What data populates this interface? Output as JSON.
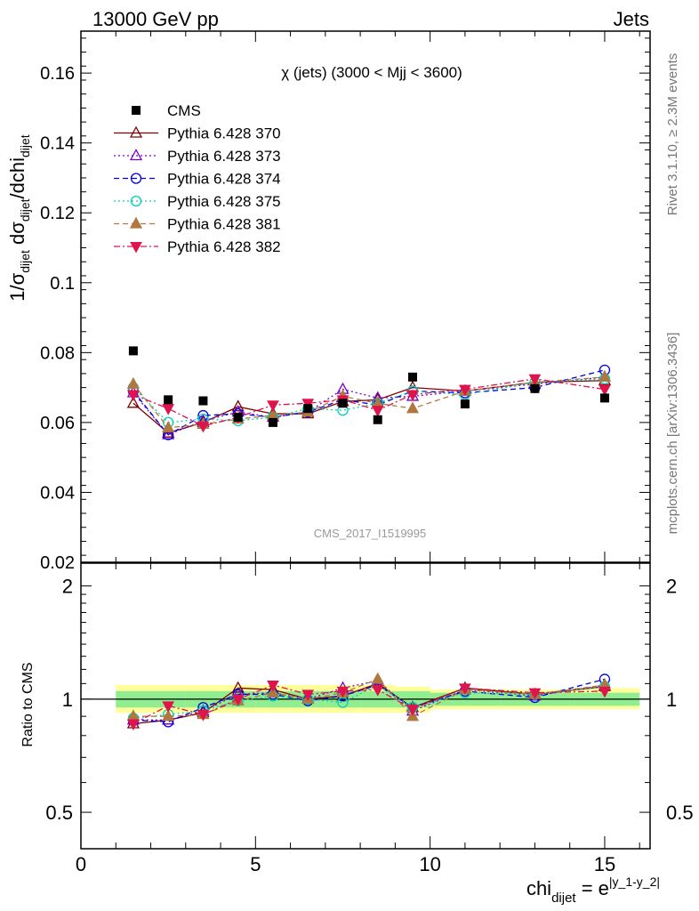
{
  "header": {
    "left": "13000 GeV pp",
    "right": "Jets"
  },
  "side_labels": {
    "rivet_prefix": "Rivet 3.1.10, ",
    "rivet_suffix": " 2.3M events",
    "mcplots": "mcplots.cern.ch [arXiv:1306.3436]"
  },
  "analysis_id": "CMS_2017_I1519995",
  "colors": {
    "cms": "#000000",
    "p370": "#800000",
    "p373": "#7a00cc",
    "p374": "#0000e0",
    "p375": "#00d2b4",
    "p381": "#b07840",
    "p382": "#e0144c",
    "band_inner": "#90ee90",
    "band_outer": "#ffff99"
  },
  "chart_data": [
    {
      "type": "scatter",
      "title": "χ (jets) (3000 < Mjj < 3600)",
      "xlabel": "chi_dijet = e^|y_1-y_2|",
      "ylabel": "1/σ_dijet dσ_dijet/dchi_dijet",
      "ylim": [
        0.02,
        0.172
      ],
      "yticks": [
        "0.02",
        "0.04",
        "0.06",
        "0.08",
        "0.1",
        "0.12",
        "0.14",
        "0.16"
      ],
      "legend_position": "top-left",
      "series": [
        {
          "name": "CMS",
          "key": "cms",
          "marker": "square",
          "line": "none",
          "x": [
            1.5,
            2.5,
            3.5,
            4.5,
            5.5,
            6.5,
            7.5,
            8.5,
            9.5,
            11.0,
            13.0,
            15.0
          ],
          "y": [
            0.0805,
            0.0665,
            0.0662,
            0.0615,
            0.06,
            0.064,
            0.0655,
            0.0608,
            0.073,
            0.0653,
            0.0697,
            0.067
          ]
        },
        {
          "name": "Pythia 6.428 370",
          "key": "p370",
          "marker": "triangle-open",
          "line": "solid",
          "x": [
            1.5,
            2.5,
            3.5,
            4.5,
            5.5,
            6.5,
            7.5,
            8.5,
            9.5,
            11.0,
            13.0,
            15.0
          ],
          "y": [
            0.0655,
            0.057,
            0.06,
            0.0645,
            0.0625,
            0.0625,
            0.066,
            0.0665,
            0.07,
            0.069,
            0.0715,
            0.072
          ]
        },
        {
          "name": "Pythia 6.428 373",
          "key": "p373",
          "marker": "triangle-open",
          "line": "dotted",
          "x": [
            1.5,
            2.5,
            3.5,
            4.5,
            5.5,
            6.5,
            7.5,
            8.5,
            9.5,
            11.0,
            13.0,
            15.0
          ],
          "y": [
            0.0685,
            0.0565,
            0.0605,
            0.063,
            0.0615,
            0.063,
            0.0695,
            0.067,
            0.0675,
            0.069,
            0.071,
            0.073
          ]
        },
        {
          "name": "Pythia 6.428 374",
          "key": "p374",
          "marker": "circle-open",
          "line": "dashed",
          "x": [
            1.5,
            2.5,
            3.5,
            4.5,
            5.5,
            6.5,
            7.5,
            8.5,
            9.5,
            11.0,
            13.0,
            15.0
          ],
          "y": [
            0.069,
            0.0565,
            0.062,
            0.0625,
            0.0615,
            0.063,
            0.0665,
            0.065,
            0.069,
            0.0685,
            0.07,
            0.075
          ]
        },
        {
          "name": "Pythia 6.428 375",
          "key": "p375",
          "marker": "circle-open",
          "line": "dotted",
          "x": [
            1.5,
            2.5,
            3.5,
            4.5,
            5.5,
            6.5,
            7.5,
            8.5,
            9.5,
            11.0,
            13.0,
            15.0
          ],
          "y": [
            0.07,
            0.06,
            0.061,
            0.0605,
            0.0615,
            0.064,
            0.0635,
            0.0655,
            0.069,
            0.068,
            0.0715,
            0.0725
          ]
        },
        {
          "name": "Pythia 6.428 381",
          "key": "p381",
          "marker": "triangle-filled",
          "line": "dashed",
          "x": [
            1.5,
            2.5,
            3.5,
            4.5,
            5.5,
            6.5,
            7.5,
            8.5,
            9.5,
            11.0,
            13.0,
            15.0
          ],
          "y": [
            0.071,
            0.0585,
            0.0595,
            0.061,
            0.062,
            0.063,
            0.0675,
            0.0655,
            0.064,
            0.069,
            0.0715,
            0.073
          ]
        },
        {
          "name": "Pythia 6.428 382",
          "key": "p382",
          "marker": "triangle-down-filled",
          "line": "dashdot",
          "x": [
            1.5,
            2.5,
            3.5,
            4.5,
            5.5,
            6.5,
            7.5,
            8.5,
            9.5,
            11.0,
            13.0,
            15.0
          ],
          "y": [
            0.068,
            0.064,
            0.059,
            0.0615,
            0.065,
            0.0655,
            0.0665,
            0.0635,
            0.068,
            0.0695,
            0.0725,
            0.0695
          ]
        }
      ]
    },
    {
      "type": "scatter",
      "ylabel": "Ratio to CMS",
      "xlabel": "chi_dijet = e^|y_1-y_2|",
      "xlim": [
        0,
        16.3
      ],
      "xticks": [
        "0",
        "5",
        "10",
        "15"
      ],
      "ylim": [
        0.4,
        2.3
      ],
      "ylog": true,
      "yticks": [
        "0.5",
        "1",
        "2"
      ],
      "reference_line": 1,
      "bands": {
        "x_edges": [
          1,
          2,
          3,
          4,
          5,
          6,
          7,
          8,
          9,
          10,
          12,
          14,
          16
        ],
        "inner_lo": [
          0.95,
          0.95,
          0.95,
          0.95,
          0.95,
          0.95,
          0.95,
          0.95,
          0.95,
          0.96,
          0.96,
          0.96
        ],
        "inner_hi": [
          1.05,
          1.05,
          1.05,
          1.05,
          1.05,
          1.05,
          1.05,
          1.05,
          1.05,
          1.04,
          1.04,
          1.04
        ],
        "outer_lo": [
          0.92,
          0.92,
          0.92,
          0.92,
          0.92,
          0.92,
          0.92,
          0.92,
          0.92,
          0.94,
          0.94,
          0.94
        ],
        "outer_hi": [
          1.09,
          1.09,
          1.09,
          1.09,
          1.09,
          1.09,
          1.09,
          1.09,
          1.08,
          1.06,
          1.06,
          1.07
        ]
      },
      "series": [
        {
          "name": "Pythia 6.428 370",
          "key": "p370",
          "marker": "triangle-open",
          "line": "solid",
          "x": [
            1.5,
            2.5,
            3.5,
            4.5,
            5.5,
            6.5,
            7.5,
            8.5,
            9.5,
            11.0,
            13.0,
            15.0
          ],
          "y": [
            0.86,
            0.88,
            0.92,
            1.07,
            1.06,
            1.0,
            1.02,
            1.1,
            0.95,
            1.07,
            1.03,
            1.08
          ]
        },
        {
          "name": "Pythia 6.428 373",
          "key": "p373",
          "marker": "triangle-open",
          "line": "dotted",
          "x": [
            1.5,
            2.5,
            3.5,
            4.5,
            5.5,
            6.5,
            7.5,
            8.5,
            9.5,
            11.0,
            13.0,
            15.0
          ],
          "y": [
            0.88,
            0.88,
            0.93,
            1.03,
            1.04,
            1.0,
            1.07,
            1.12,
            0.93,
            1.06,
            1.02,
            1.09
          ]
        },
        {
          "name": "Pythia 6.428 374",
          "key": "p374",
          "marker": "circle-open",
          "line": "dashed",
          "x": [
            1.5,
            2.5,
            3.5,
            4.5,
            5.5,
            6.5,
            7.5,
            8.5,
            9.5,
            11.0,
            13.0,
            15.0
          ],
          "y": [
            0.88,
            0.87,
            0.95,
            1.03,
            1.03,
            0.99,
            1.02,
            1.09,
            0.95,
            1.05,
            1.01,
            1.13
          ]
        },
        {
          "name": "Pythia 6.428 375",
          "key": "p375",
          "marker": "circle-open",
          "line": "dotted",
          "x": [
            1.5,
            2.5,
            3.5,
            4.5,
            5.5,
            6.5,
            7.5,
            8.5,
            9.5,
            11.0,
            13.0,
            15.0
          ],
          "y": [
            0.89,
            0.91,
            0.93,
            0.99,
            1.02,
            1.0,
            0.98,
            1.09,
            0.95,
            1.04,
            1.03,
            1.08
          ]
        },
        {
          "name": "Pythia 6.428 381",
          "key": "p381",
          "marker": "triangle-filled",
          "line": "dashed",
          "x": [
            1.5,
            2.5,
            3.5,
            4.5,
            5.5,
            6.5,
            7.5,
            8.5,
            9.5,
            11.0,
            13.0,
            15.0
          ],
          "y": [
            0.9,
            0.9,
            0.91,
            0.99,
            1.04,
            1.0,
            1.04,
            1.13,
            0.9,
            1.06,
            1.03,
            1.09
          ]
        },
        {
          "name": "Pythia 6.428 382",
          "key": "p382",
          "marker": "triangle-down-filled",
          "line": "dashdot",
          "x": [
            1.5,
            2.5,
            3.5,
            4.5,
            5.5,
            6.5,
            7.5,
            8.5,
            9.5,
            11.0,
            13.0,
            15.0
          ],
          "y": [
            0.86,
            0.96,
            0.91,
            1.0,
            1.09,
            1.03,
            1.05,
            1.06,
            0.94,
            1.07,
            1.04,
            1.05
          ]
        }
      ]
    }
  ]
}
